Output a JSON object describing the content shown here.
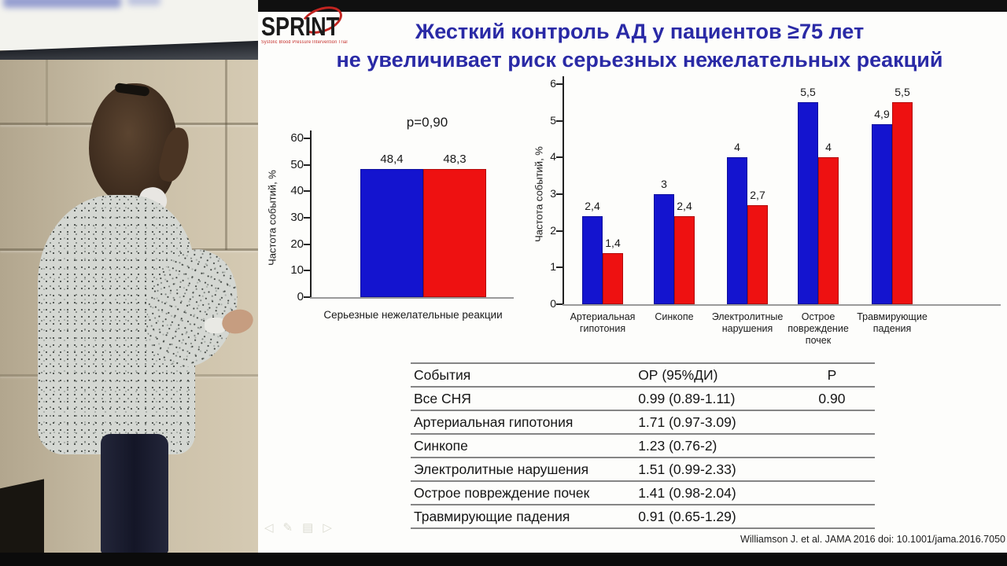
{
  "slide": {
    "logo": {
      "text": "SPRINT",
      "tagline": "Systolic Blood Pressure Intervention Trial",
      "accent_color": "#c22420"
    },
    "title": {
      "line1": "Жесткий контроль АД у пациентов ≥75 лет",
      "line2": "не увеличивает риск серьезных нежелательных реакций",
      "color": "#2a2aa6"
    },
    "citation": "Williamson J. et al. JAMA 2016 doi: 10.1001/jama.2016.7050",
    "toolbar": [
      {
        "name": "prev-slide",
        "glyph": "◁"
      },
      {
        "name": "pen",
        "glyph": "✎"
      },
      {
        "name": "slide-menu",
        "glyph": "▤"
      },
      {
        "name": "next-slide",
        "glyph": "▷"
      }
    ]
  },
  "chart_data": [
    {
      "type": "bar",
      "annotation": "p=0,90",
      "ylabel": "Частота событий, %",
      "ylim": [
        0,
        60
      ],
      "yticks": [
        0,
        10,
        20,
        30,
        40,
        50,
        60
      ],
      "categories": [
        "Серьезные нежелательные реакции"
      ],
      "series": [
        {
          "color": "#1414cf",
          "values": [
            48.4
          ],
          "labels": [
            "48,4"
          ]
        },
        {
          "color": "#ee1111",
          "values": [
            48.3
          ],
          "labels": [
            "48,3"
          ]
        }
      ],
      "grid": false,
      "legend": "none"
    },
    {
      "type": "bar",
      "ylabel": "Частота событий, %",
      "ylim": [
        0,
        6
      ],
      "yticks": [
        0,
        1,
        2,
        3,
        4,
        5,
        6
      ],
      "categories": [
        "Артериальная\nгипотония",
        "Синкопе",
        "Электролитные\nнарушения",
        "Острое\nповреждение\nпочек",
        "Травмирующие\nпадения"
      ],
      "series": [
        {
          "color": "#1414cf",
          "values": [
            2.4,
            3,
            4,
            5.5,
            4.9
          ],
          "labels": [
            "2,4",
            "3",
            "4",
            "5,5",
            "4,9"
          ]
        },
        {
          "color": "#ee1111",
          "values": [
            1.4,
            2.4,
            2.7,
            4,
            5.5
          ],
          "labels": [
            "1,4",
            "2,4",
            "2,7",
            "4",
            "5,5"
          ]
        }
      ],
      "grid": false,
      "legend": "none"
    }
  ],
  "table": {
    "headers": [
      "События",
      "ОР (95%ДИ)",
      "Р"
    ],
    "rows": [
      [
        "Все СНЯ",
        "0.99 (0.89-1.11)",
        "0.90"
      ],
      [
        "Артериальная гипотония",
        "1.71 (0.97-3.09)",
        ""
      ],
      [
        "Синкопе",
        "1.23 (0.76-2)",
        ""
      ],
      [
        "Электролитные нарушения",
        "1.51 (0.99-2.33)",
        ""
      ],
      [
        "Острое повреждение почек",
        "1.41 (0.98-2.04)",
        ""
      ],
      [
        "Травмирующие падения",
        "0.91 (0.65-1.29)",
        ""
      ]
    ]
  }
}
